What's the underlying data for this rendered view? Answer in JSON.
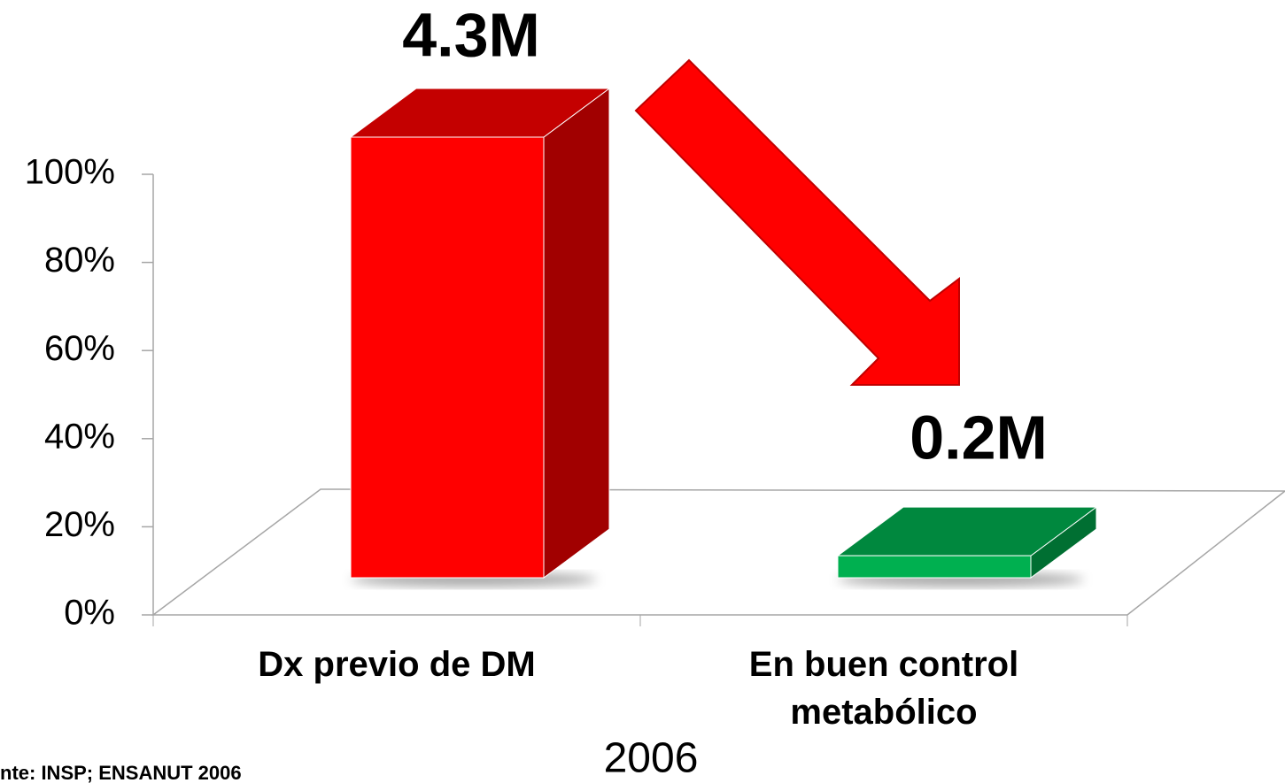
{
  "chart_data": {
    "type": "bar3d",
    "categories": [
      "Dx previo de DM",
      "En buen control metabólico"
    ],
    "values": [
      100,
      5
    ],
    "colors": [
      "#ff0000",
      "#00b050"
    ],
    "annotations": [
      "4.3M",
      "0.2M"
    ],
    "x_label": "2006",
    "source": "nte: INSP; ENSANUT 2006",
    "ylim": [
      0,
      100
    ],
    "yticks": [
      {
        "value": 0,
        "label": "0%"
      },
      {
        "value": 20,
        "label": "20%"
      },
      {
        "value": 40,
        "label": "40%"
      },
      {
        "value": 60,
        "label": "60%"
      },
      {
        "value": 80,
        "label": "80%"
      },
      {
        "value": 100,
        "label": "100%"
      }
    ],
    "grid": false
  }
}
